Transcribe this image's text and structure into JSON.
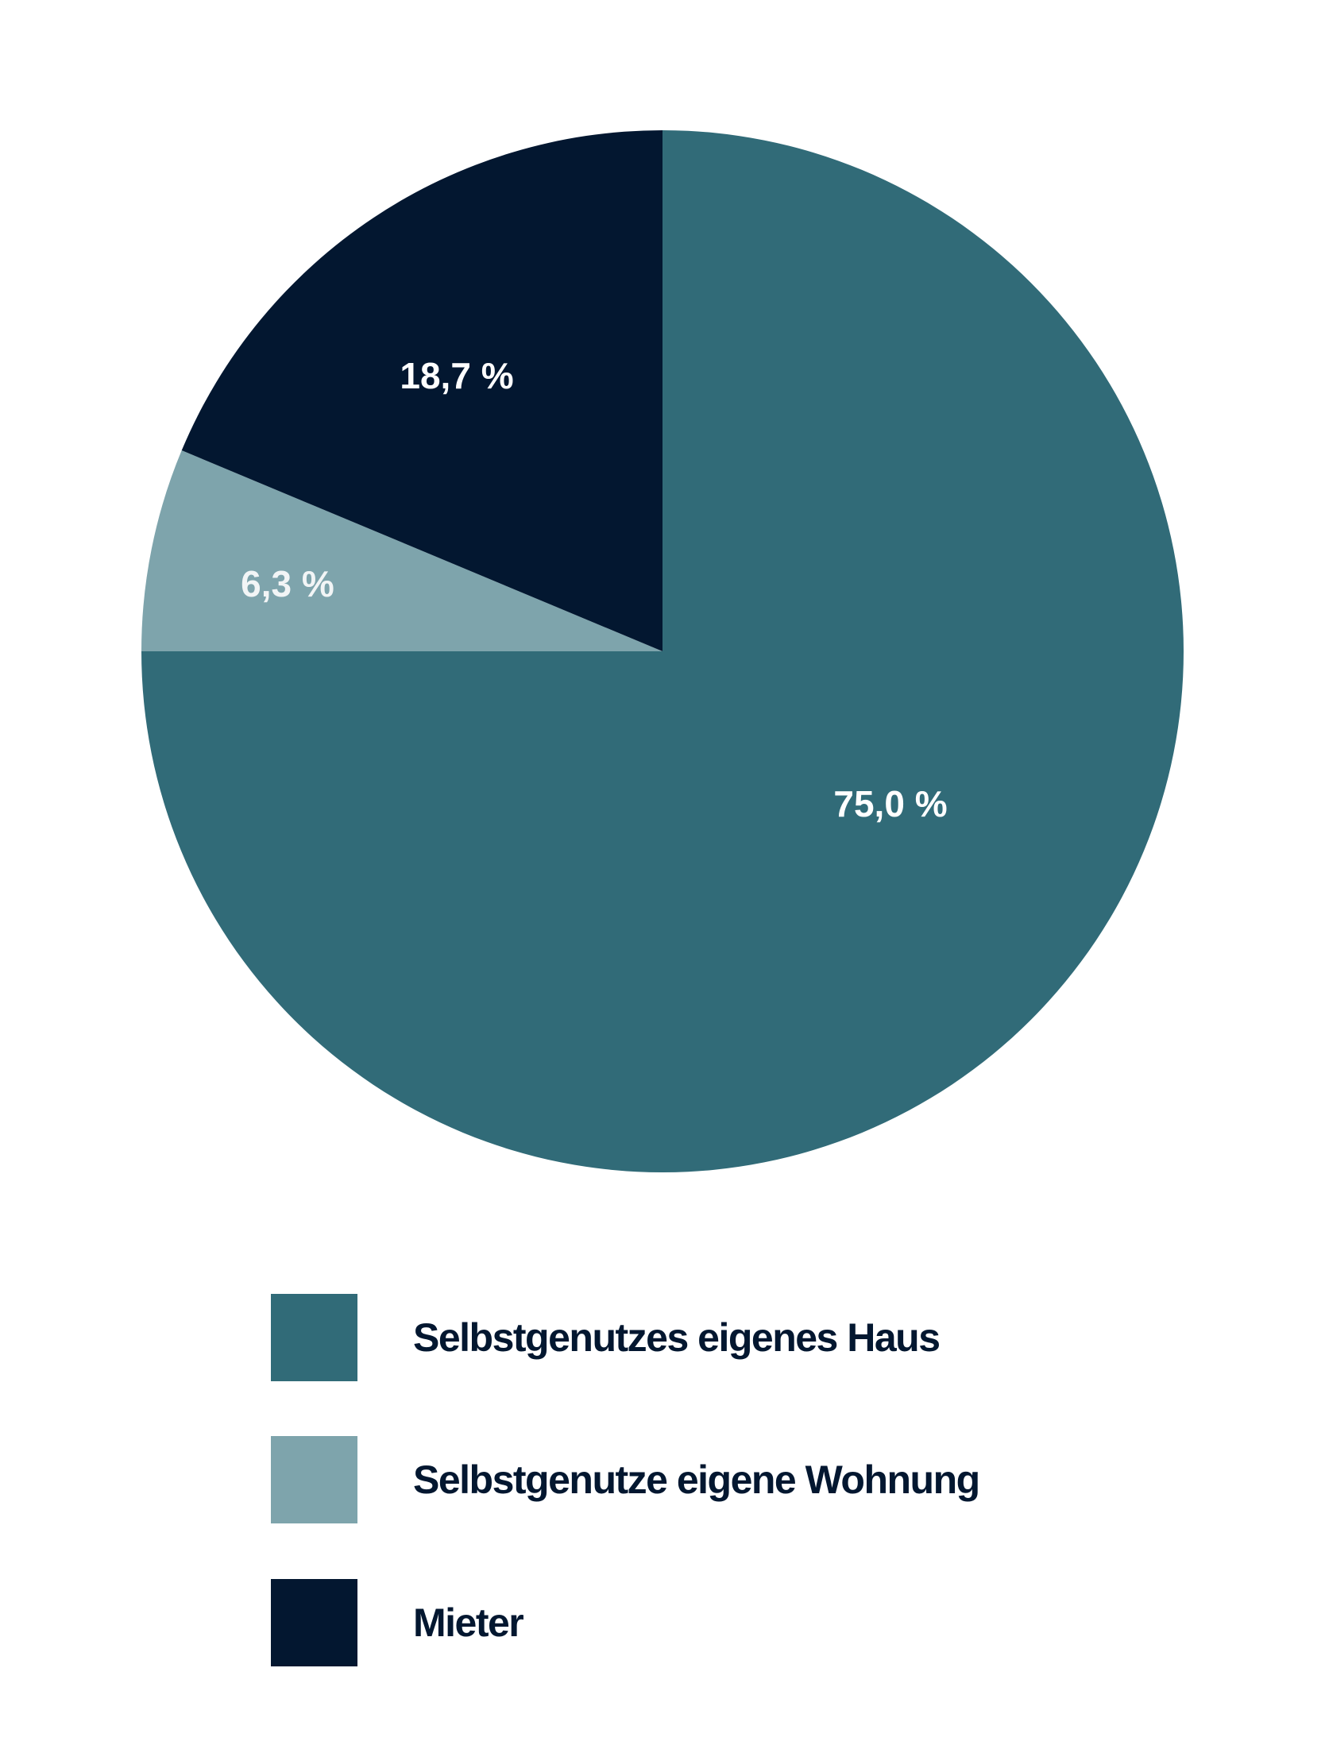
{
  "chart_data": {
    "type": "pie",
    "title": "",
    "start_angle_deg": 0,
    "direction": "clockwise",
    "slices": [
      {
        "name": "Selbstgenutzes eigenes Haus",
        "value": 75.0,
        "label": "75,0 %",
        "color": "#316b78",
        "label_color": "#ffffff"
      },
      {
        "name": "Selbstgenutze eigene Wohnung",
        "value": 6.3,
        "label": "6,3 %",
        "color": "#7ea4ac",
        "label_color": "#f2f5f6"
      },
      {
        "name": "Mieter",
        "value": 18.7,
        "label": "18,7 %",
        "color": "#031730",
        "label_color": "#ffffff"
      }
    ],
    "legend_position": "bottom"
  },
  "legend": {
    "items": [
      {
        "label": "Selbstgenutzes eigenes Haus",
        "color": "#316b78"
      },
      {
        "label": "Selbstgenutze eigene Wohnung",
        "color": "#7ea4ac"
      },
      {
        "label": "Mieter",
        "color": "#031730"
      }
    ]
  }
}
